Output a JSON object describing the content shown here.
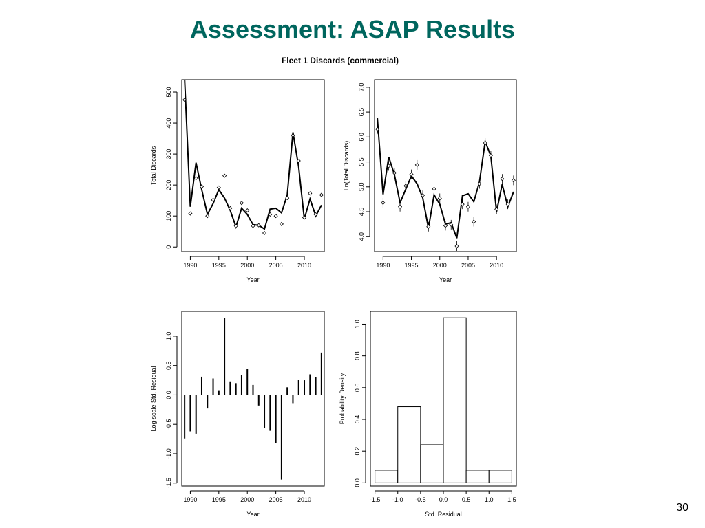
{
  "slide": {
    "title": "Assessment: ASAP Results",
    "page_number": "30"
  },
  "figure": {
    "title": "Fleet 1 Discards  (commercial)"
  },
  "chart_data": [
    {
      "id": "total",
      "type": "line",
      "xlabel": "Year",
      "ylabel": "Total Discards",
      "xlim": [
        1988.5,
        2013.5
      ],
      "ylim": [
        -15,
        540
      ],
      "xticks": [
        1990,
        1995,
        2000,
        2005,
        2010
      ],
      "yticks": [
        0,
        100,
        200,
        300,
        400,
        500
      ],
      "x": [
        1989,
        1990,
        1991,
        1992,
        1993,
        1994,
        1995,
        1996,
        1997,
        1998,
        1999,
        2000,
        2001,
        2002,
        2003,
        2004,
        2005,
        2006,
        2007,
        2008,
        2009,
        2010,
        2011,
        2012,
        2013
      ],
      "series": [
        {
          "role": "predicted",
          "values": [
            545,
            130,
            272,
            185,
            105,
            140,
            185,
            158,
            118,
            65,
            125,
            105,
            72,
            70,
            58,
            122,
            125,
            110,
            168,
            370,
            260,
            90,
            155,
            100,
            135
          ]
        },
        {
          "role": "observed",
          "values": [
            475,
            108,
            222,
            195,
            100,
            152,
            192,
            230,
            125,
            68,
            142,
            118,
            68,
            70,
            45,
            105,
            100,
            74,
            158,
            360,
            278,
            95,
            173,
            105,
            168
          ]
        }
      ]
    },
    {
      "id": "log",
      "type": "line",
      "xlabel": "Year",
      "ylabel": "Ln(Total Discards)",
      "xlim": [
        1988.5,
        2013.5
      ],
      "ylim": [
        3.7,
        7.15
      ],
      "xticks": [
        1990,
        1995,
        2000,
        2005,
        2010
      ],
      "yticks": [
        4.0,
        4.5,
        5.0,
        5.5,
        6.0,
        6.5,
        7.0
      ],
      "x": [
        1989,
        1990,
        1991,
        1992,
        1993,
        1994,
        1995,
        1996,
        1997,
        1998,
        1999,
        2000,
        2001,
        2002,
        2003,
        2004,
        2005,
        2006,
        2007,
        2008,
        2009,
        2010,
        2011,
        2012,
        2013
      ],
      "series": [
        {
          "role": "predicted",
          "values": [
            6.38,
            4.85,
            5.6,
            5.25,
            4.68,
            4.95,
            5.22,
            5.06,
            4.78,
            4.17,
            4.84,
            4.65,
            4.25,
            4.28,
            3.97,
            4.82,
            4.86,
            4.7,
            5.1,
            5.91,
            5.62,
            4.5,
            5.05,
            4.6,
            4.9
          ]
        },
        {
          "role": "observed",
          "values": [
            6.16,
            4.68,
            5.42,
            5.28,
            4.6,
            5.02,
            5.25,
            5.44,
            4.83,
            4.2,
            4.96,
            4.77,
            4.22,
            4.24,
            3.81,
            4.65,
            4.6,
            4.3,
            5.06,
            5.88,
            5.63,
            4.55,
            5.16,
            4.65,
            5.13
          ]
        }
      ]
    },
    {
      "id": "residuals",
      "type": "bar",
      "xlabel": "Year",
      "ylabel": "Log-scale Std. Residual",
      "xlim": [
        1988.5,
        2013.5
      ],
      "ylim": [
        -1.55,
        1.42
      ],
      "xticks": [
        1990,
        1995,
        2000,
        2005,
        2010
      ],
      "yticks": [
        -1.5,
        -1.0,
        -0.5,
        0.0,
        0.5,
        1.0
      ],
      "x": [
        1989,
        1990,
        1991,
        1992,
        1993,
        1994,
        1995,
        1996,
        1997,
        1998,
        1999,
        2000,
        2001,
        2002,
        2003,
        2004,
        2005,
        2006,
        2007,
        2008,
        2009,
        2010,
        2011,
        2012,
        2013
      ],
      "values": [
        -0.74,
        -0.62,
        -0.66,
        0.31,
        -0.23,
        0.28,
        0.08,
        1.31,
        0.23,
        0.2,
        0.34,
        0.44,
        0.17,
        -0.18,
        -0.56,
        -0.61,
        -0.82,
        -1.44,
        0.13,
        -0.14,
        0.26,
        0.25,
        0.35,
        0.3,
        0.72
      ]
    },
    {
      "id": "histogram",
      "type": "bar",
      "xlabel": "Std. Residual",
      "ylabel": "Probability Density",
      "xlim": [
        -1.6,
        1.6
      ],
      "ylim": [
        -0.02,
        1.08
      ],
      "xticks": [
        -1.5,
        -1.0,
        -0.5,
        0.0,
        0.5,
        1.0,
        1.5
      ],
      "yticks": [
        0.0,
        0.2,
        0.4,
        0.6,
        0.8,
        1.0
      ],
      "bins": [
        {
          "from": -1.5,
          "to": -1.0,
          "density": 0.08
        },
        {
          "from": -1.0,
          "to": -0.5,
          "density": 0.48
        },
        {
          "from": -0.5,
          "to": 0.0,
          "density": 0.24
        },
        {
          "from": 0.0,
          "to": 0.5,
          "density": 1.04
        },
        {
          "from": 0.5,
          "to": 1.0,
          "density": 0.08
        },
        {
          "from": 1.0,
          "to": 1.5,
          "density": 0.08
        }
      ]
    }
  ]
}
